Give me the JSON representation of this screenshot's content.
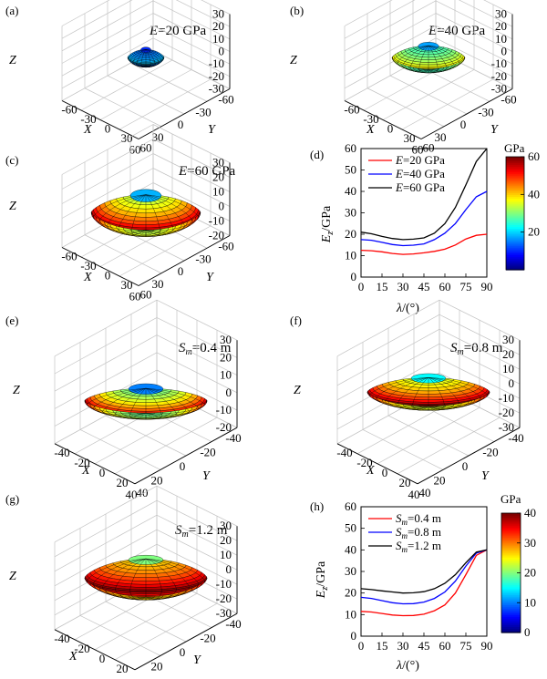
{
  "panels": {
    "a": {
      "label": "(a)",
      "title": "E=20 GPa",
      "xlabel": "X",
      "ylabel": "Y",
      "zlabel": "Z"
    },
    "b": {
      "label": "(b)",
      "title": "E=40 GPa",
      "xlabel": "X",
      "ylabel": "Y",
      "zlabel": "Z"
    },
    "c": {
      "label": "(c)",
      "title": "E=60 GPa",
      "xlabel": "X",
      "ylabel": "Y",
      "zlabel": "Z"
    },
    "d": {
      "label": "(d)"
    },
    "e": {
      "label": "(e)",
      "title": "Sm=0.4 m",
      "xlabel": "X",
      "ylabel": "Y",
      "zlabel": "Z"
    },
    "f": {
      "label": "(f)",
      "title": "Sm=0.8 m",
      "xlabel": "X",
      "ylabel": "Y",
      "zlabel": "Z"
    },
    "g": {
      "label": "(g)",
      "title": "Sm=1.2 m",
      "xlabel": "X",
      "ylabel": "Y",
      "zlabel": "Z"
    },
    "h": {
      "label": "(h)"
    }
  },
  "colorbars": [
    {
      "title": "GPa",
      "ticks": [
        20,
        40,
        60
      ],
      "range": [
        0,
        60
      ]
    },
    {
      "title": "GPa",
      "ticks": [
        0,
        10,
        20,
        30,
        40
      ],
      "range": [
        0,
        40
      ]
    }
  ],
  "chart_data": [
    {
      "type": "surface3d",
      "panel": "(a)",
      "title": "E=20 GPa",
      "xticks": [
        -60,
        -30,
        0,
        30,
        60
      ],
      "yticks": [
        -60,
        -30,
        0,
        30,
        60
      ],
      "zticks": [
        -30,
        -20,
        -10,
        0,
        10,
        20,
        30
      ],
      "xlim": [
        -60,
        60
      ],
      "ylim": [
        -60,
        60
      ],
      "zlim": [
        -30,
        30
      ],
      "surface": {
        "horizontal_radius": 20,
        "pole_height": 11,
        "equator_thickness": 5,
        "color_min": 10,
        "color_max": 20,
        "color_range": [
          0,
          60
        ]
      }
    },
    {
      "type": "surface3d",
      "panel": "(b)",
      "title": "E=40 GPa",
      "xticks": [
        -60,
        -30,
        0,
        30,
        60
      ],
      "yticks": [
        -60,
        -30,
        0,
        30,
        60
      ],
      "zticks": [
        -30,
        -20,
        -10,
        0,
        10,
        20,
        30
      ],
      "xlim": [
        -60,
        60
      ],
      "ylim": [
        -60,
        60
      ],
      "zlim": [
        -30,
        30
      ],
      "surface": {
        "horizontal_radius": 40,
        "pole_height": 17,
        "equator_thickness": 6,
        "color_min": 17,
        "color_max": 40,
        "color_range": [
          0,
          60
        ]
      }
    },
    {
      "type": "surface3d",
      "panel": "(c)",
      "title": "E=60 GPa",
      "xticks": [
        -60,
        -30,
        0,
        30,
        60
      ],
      "yticks": [
        -60,
        -30,
        0,
        30,
        60
      ],
      "zticks": [
        -20,
        -10,
        0,
        10,
        20,
        30
      ],
      "xlim": [
        -60,
        60
      ],
      "ylim": [
        -60,
        60
      ],
      "zlim": [
        -20,
        30
      ],
      "surface": {
        "horizontal_radius": 60,
        "pole_height": 21,
        "equator_thickness": 9,
        "color_min": 18,
        "color_max": 60,
        "color_range": [
          0,
          60
        ]
      }
    },
    {
      "type": "line",
      "panel": "(d)",
      "xlabel": "λ/(°)",
      "ylabel": "Ez/GPa",
      "xticks": [
        0,
        15,
        30,
        45,
        60,
        75,
        90
      ],
      "yticks": [
        0,
        10,
        20,
        30,
        40,
        50,
        60
      ],
      "xlim": [
        0,
        90
      ],
      "ylim": [
        0,
        60
      ],
      "x": [
        0,
        7.5,
        15,
        22.5,
        30,
        37.5,
        45,
        52.5,
        60,
        67.5,
        75,
        82.5,
        90
      ],
      "series": [
        {
          "name": "E=20 GPa",
          "color": "#ff0000",
          "values": [
            12.5,
            12.3,
            11.8,
            11.0,
            10.6,
            10.8,
            11.3,
            12.0,
            13.0,
            15.0,
            17.8,
            19.5,
            20.0
          ]
        },
        {
          "name": "E=40 GPa",
          "color": "#0000ff",
          "values": [
            17.5,
            17.2,
            16.2,
            15.2,
            14.7,
            14.9,
            15.5,
            17.5,
            20.5,
            25.0,
            31.5,
            37.5,
            40.0
          ]
        },
        {
          "name": "E=60 GPa",
          "color": "#000000",
          "values": [
            21.0,
            20.2,
            19.0,
            18.0,
            17.5,
            17.7,
            18.3,
            20.5,
            25.0,
            32.5,
            43.0,
            54.0,
            60.0
          ]
        }
      ]
    },
    {
      "type": "surface3d",
      "panel": "(e)",
      "title": "Sm=0.4 m",
      "xticks": [
        -40,
        -20,
        0,
        20,
        40
      ],
      "yticks": [
        -40,
        -20,
        0,
        20,
        40
      ],
      "zticks": [
        -20,
        -10,
        0,
        10,
        20,
        30
      ],
      "xlim": [
        -40,
        40
      ],
      "ylim": [
        -40,
        40
      ],
      "zlim": [
        -20,
        30
      ],
      "surface": {
        "horizontal_radius": 40,
        "pole_height": 11,
        "equator_thickness": 7,
        "color_min": 10,
        "color_max": 40,
        "color_range": [
          0,
          40
        ]
      }
    },
    {
      "type": "surface3d",
      "panel": "(f)",
      "title": "Sm=0.8 m",
      "xticks": [
        -40,
        -20,
        0,
        20,
        40
      ],
      "yticks": [
        -40,
        -20,
        0,
        20,
        40
      ],
      "zticks": [
        -30,
        -20,
        -10,
        0,
        10,
        20,
        30
      ],
      "xlim": [
        -40,
        40
      ],
      "ylim": [
        -40,
        40
      ],
      "zlim": [
        -30,
        30
      ],
      "surface": {
        "horizontal_radius": 40,
        "pole_height": 16,
        "equator_thickness": 9,
        "color_min": 15,
        "color_max": 40,
        "color_range": [
          0,
          40
        ]
      }
    },
    {
      "type": "surface3d",
      "panel": "(g)",
      "title": "Sm=1.2 m",
      "xticks": [
        -40,
        -20,
        0,
        20,
        40
      ],
      "yticks": [
        -40,
        -20,
        0,
        20,
        40
      ],
      "zticks": [
        -30,
        -20,
        -10,
        0,
        10,
        20,
        30
      ],
      "xlim": [
        -40,
        40
      ],
      "ylim": [
        -40,
        40
      ],
      "zlim": [
        -30,
        30
      ],
      "surface": {
        "horizontal_radius": 40,
        "pole_height": 21,
        "equator_thickness": 12,
        "color_min": 20,
        "color_max": 40,
        "color_range": [
          0,
          40
        ]
      }
    },
    {
      "type": "line",
      "panel": "(h)",
      "xlabel": "λ/(°)",
      "ylabel": "Ez/GPa",
      "xticks": [
        0,
        15,
        30,
        45,
        60,
        75,
        90
      ],
      "yticks": [
        0,
        10,
        20,
        30,
        40,
        50,
        60
      ],
      "xlim": [
        0,
        90
      ],
      "ylim": [
        0,
        60
      ],
      "x": [
        0,
        7.5,
        15,
        22.5,
        30,
        37.5,
        45,
        52.5,
        60,
        67.5,
        75,
        82.5,
        90
      ],
      "series": [
        {
          "name": "Sm=0.4 m",
          "color": "#ff0000",
          "values": [
            11.5,
            11.2,
            10.5,
            9.8,
            9.5,
            9.6,
            10.2,
            11.8,
            14.5,
            20.0,
            28.5,
            37.5,
            40.0
          ]
        },
        {
          "name": "Sm=0.8 m",
          "color": "#0000ff",
          "values": [
            18.0,
            17.5,
            16.5,
            15.5,
            15.0,
            15.1,
            15.8,
            17.5,
            20.5,
            25.5,
            32.5,
            38.5,
            40.0
          ]
        },
        {
          "name": "Sm=1.2 m",
          "color": "#000000",
          "values": [
            22.0,
            21.6,
            21.0,
            20.5,
            20.0,
            20.1,
            20.6,
            22.0,
            24.5,
            28.5,
            34.0,
            39.0,
            40.0
          ]
        }
      ]
    }
  ]
}
